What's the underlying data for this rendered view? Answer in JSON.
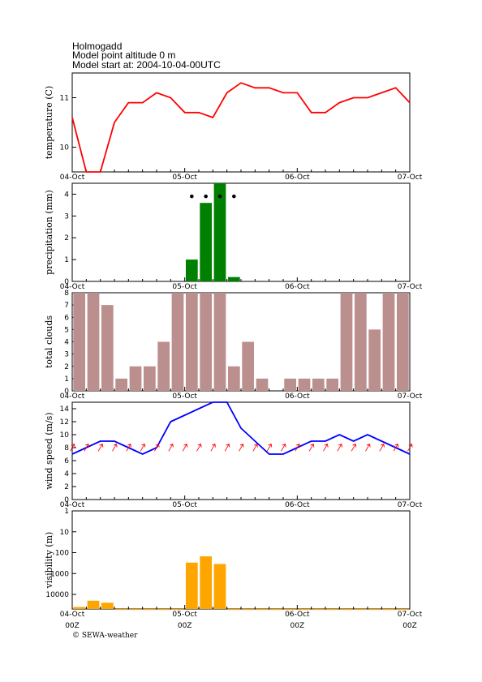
{
  "header": {
    "station": "Holmogadd",
    "altitude": "Model point altitude  0 m",
    "model_start": "Model start at: 2004-10-04-00UTC"
  },
  "x_axis": {
    "dates": [
      "04-Oct",
      "05-Oct",
      "06-Oct",
      "07-Oct"
    ],
    "hour_labels": [
      "00Z",
      "00Z",
      "00Z",
      "00Z"
    ],
    "step_hours": 3
  },
  "footer": {
    "copyright": "© SEWA-weather"
  },
  "colors": {
    "temperature": "#ff0000",
    "precipitation": "#008000",
    "clouds": "#bc8f8f",
    "wind": "#0000ff",
    "wind_arrows": "#ff0000",
    "visibility": "#ffa500"
  },
  "chart_data": [
    {
      "type": "line",
      "ylabel": "temperature (C)",
      "ylim": [
        9.5,
        11.5
      ],
      "yticks": [
        10,
        11
      ],
      "x_hours": [
        0,
        3,
        6,
        9,
        12,
        15,
        18,
        21,
        24,
        27,
        30,
        33,
        36,
        39,
        42,
        45,
        48,
        51,
        54,
        57,
        60,
        63,
        66,
        69,
        72
      ],
      "values": [
        10.6,
        9.5,
        9.5,
        10.5,
        10.9,
        10.9,
        11.1,
        11.0,
        10.7,
        10.7,
        10.6,
        11.1,
        11.3,
        11.2,
        11.2,
        11.1,
        11.1,
        10.7,
        10.7,
        10.9,
        11.0,
        11.0,
        11.1,
        11.2,
        10.9
      ]
    },
    {
      "type": "bar",
      "ylabel": "precipitation (mm)",
      "ylim": [
        0,
        4.5
      ],
      "yticks": [
        0,
        1,
        2,
        3,
        4
      ],
      "x_hours": [
        27,
        30,
        33,
        36
      ],
      "values": [
        1.0,
        3.6,
        4.5,
        0.2
      ],
      "snow_marker_hours": [
        27,
        30,
        33,
        36
      ],
      "snow_marker_value": 3.9
    },
    {
      "type": "bar",
      "ylabel": "total clouds",
      "ylim": [
        0,
        8
      ],
      "yticks": [
        0,
        1,
        2,
        3,
        4,
        5,
        6,
        7,
        8
      ],
      "x_hours": [
        3,
        6,
        9,
        12,
        15,
        18,
        21,
        24,
        27,
        30,
        33,
        36,
        39,
        42,
        45,
        48,
        51,
        54,
        57,
        60,
        63,
        66,
        69,
        72
      ],
      "values": [
        8,
        8,
        7,
        1,
        2,
        2,
        4,
        8,
        8,
        8,
        8,
        2,
        4,
        1,
        0,
        1,
        1,
        1,
        1,
        8,
        8,
        5,
        8,
        8
      ]
    },
    {
      "type": "line",
      "ylabel": "wind speed (m/s)",
      "ylim": [
        0,
        15
      ],
      "yticks": [
        0,
        2,
        4,
        6,
        8,
        10,
        12,
        14
      ],
      "x_hours": [
        0,
        3,
        6,
        9,
        12,
        15,
        18,
        21,
        24,
        27,
        30,
        33,
        36,
        39,
        42,
        45,
        48,
        51,
        54,
        57,
        60,
        63,
        66,
        69,
        72
      ],
      "values": [
        7,
        8,
        9,
        9,
        8,
        7,
        8,
        12,
        13,
        14,
        15,
        15,
        11,
        9,
        7,
        7,
        8,
        9,
        9,
        10,
        9,
        10,
        9,
        8,
        7
      ],
      "arrow_value": 8,
      "arrow_direction_deg": 210
    },
    {
      "type": "bar",
      "ylabel": "visibility (m)",
      "scale": "log-inverted",
      "ylim": [
        50000,
        1
      ],
      "ytick_labels": [
        "1",
        "10",
        "100",
        "1000",
        "10000"
      ],
      "x_hours": [
        3,
        6,
        9,
        12,
        15,
        18,
        21,
        24,
        27,
        30,
        33,
        36,
        39,
        42,
        45,
        48,
        51,
        54,
        57,
        60,
        63,
        66,
        69,
        72
      ],
      "values": [
        40000,
        20000,
        25000,
        50000,
        50000,
        50000,
        50000,
        50000,
        300,
        150,
        350,
        50000,
        50000,
        50000,
        50000,
        50000,
        50000,
        50000,
        50000,
        50000,
        50000,
        50000,
        50000,
        50000
      ]
    }
  ]
}
